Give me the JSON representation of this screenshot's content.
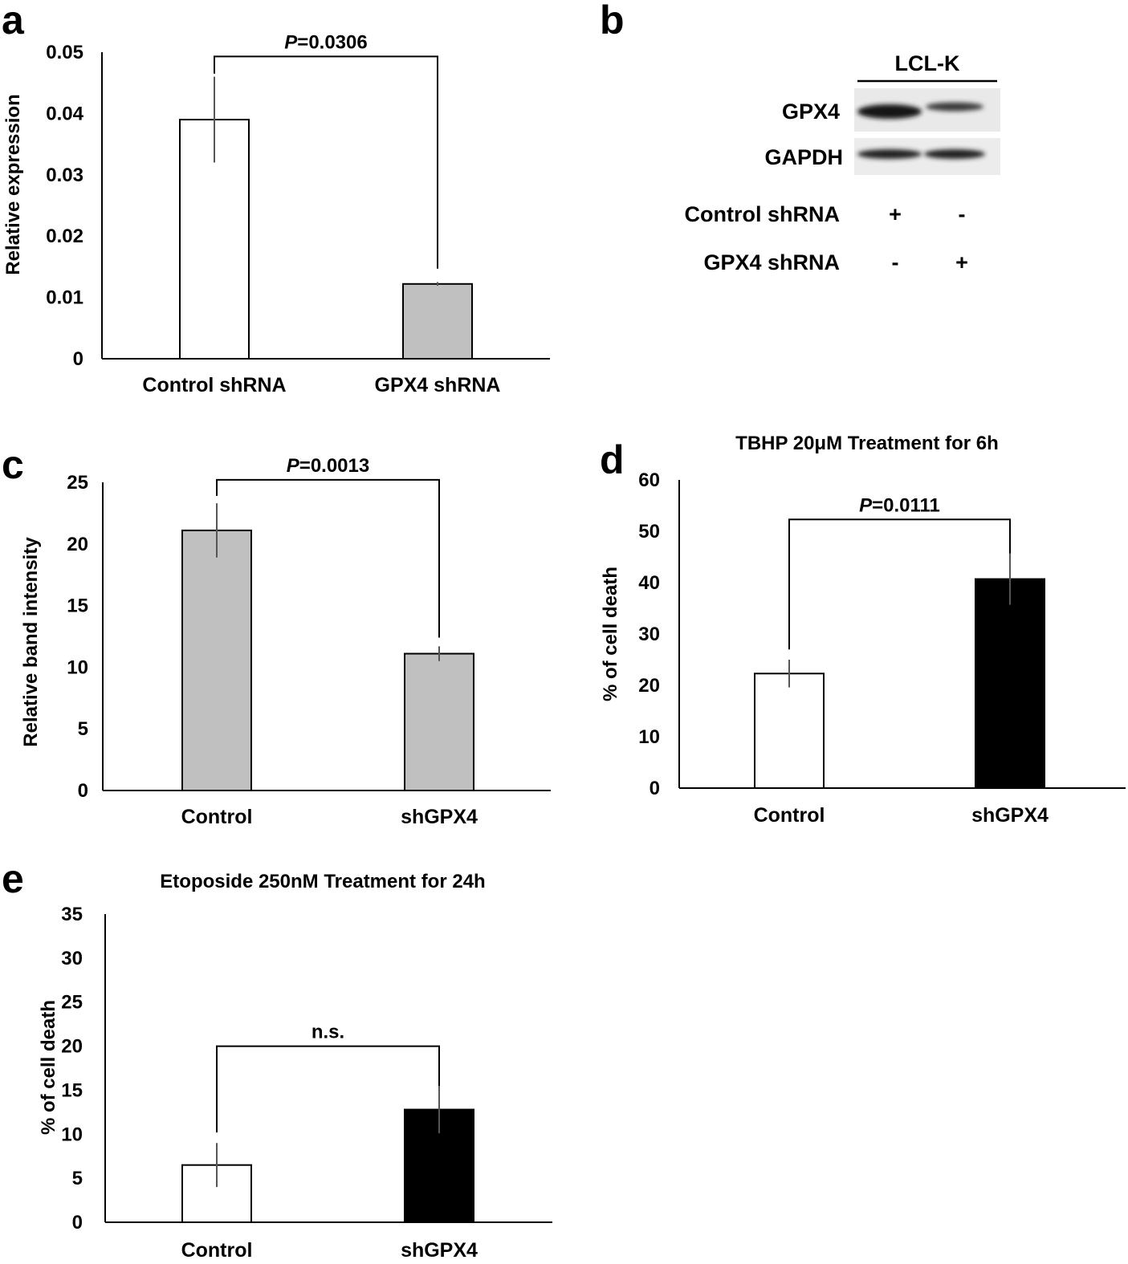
{
  "panels": {
    "a": "a",
    "b": "b",
    "c": "c",
    "d": "d",
    "e": "e"
  },
  "chart_data": [
    {
      "id": "a",
      "type": "bar",
      "title": "",
      "xlabel": "",
      "ylabel": "Relative expression",
      "categories": [
        "Control shRNA",
        "GPX4 shRNA"
      ],
      "values": [
        0.039,
        0.0122
      ],
      "errors": [
        0.007,
        0.0003
      ],
      "bar_colors": [
        "#ffffff",
        "#c0c0c0"
      ],
      "ylim": [
        0,
        0.05
      ],
      "yticks": [
        0,
        0.01,
        0.02,
        0.03,
        0.04,
        0.05
      ],
      "ytick_labels": [
        "0",
        "0.01",
        "0.02",
        "0.03",
        "0.04",
        "0.05"
      ],
      "significance": {
        "p_label": "P",
        "p_value": "=0.0306"
      }
    },
    {
      "id": "c",
      "type": "bar",
      "title": "",
      "xlabel": "",
      "ylabel": "Relative band intensity",
      "categories": [
        "Control",
        "shGPX4"
      ],
      "values": [
        21.1,
        11.1
      ],
      "errors": [
        2.2,
        0.6
      ],
      "bar_colors": [
        "#c0c0c0",
        "#c0c0c0"
      ],
      "ylim": [
        0,
        25
      ],
      "yticks": [
        0,
        5,
        10,
        15,
        20,
        25
      ],
      "ytick_labels": [
        "0",
        "5",
        "10",
        "15",
        "20",
        "25"
      ],
      "significance": {
        "p_label": "P",
        "p_value": "=0.0013"
      }
    },
    {
      "id": "d",
      "type": "bar",
      "title": "TBHP 20μM Treatment for 6h",
      "xlabel": "",
      "ylabel": "% of cell death",
      "categories": [
        "Control",
        "shGPX4"
      ],
      "values": [
        22.3,
        40.7
      ],
      "errors": [
        2.7,
        5.0
      ],
      "bar_colors": [
        "#ffffff",
        "#000000"
      ],
      "ylim": [
        0,
        60
      ],
      "yticks": [
        0,
        10,
        20,
        30,
        40,
        50,
        60
      ],
      "ytick_labels": [
        "0",
        "10",
        "20",
        "30",
        "40",
        "50",
        "60"
      ],
      "significance": {
        "p_label": "P",
        "p_value": "=0.0111"
      }
    },
    {
      "id": "e",
      "type": "bar",
      "title": "Etoposide 250nM Treatment for 24h",
      "xlabel": "",
      "ylabel": "% of cell death",
      "categories": [
        "Control",
        "shGPX4"
      ],
      "values": [
        6.5,
        12.8
      ],
      "errors": [
        2.5,
        2.7
      ],
      "bar_colors": [
        "#ffffff",
        "#000000"
      ],
      "ylim": [
        0,
        35
      ],
      "yticks": [
        0,
        5,
        10,
        15,
        20,
        25,
        30,
        35
      ],
      "ytick_labels": [
        "0",
        "5",
        "10",
        "15",
        "20",
        "25",
        "30",
        "35"
      ],
      "significance": {
        "p_label": "",
        "p_value": "n.s."
      }
    }
  ],
  "blot": {
    "cell_line": "LCL-K",
    "bands": [
      "GPX4",
      "GAPDH"
    ],
    "conditions": [
      {
        "label": "Control shRNA",
        "lanes": [
          "+",
          "-"
        ]
      },
      {
        "label": "GPX4 shRNA",
        "lanes": [
          "-",
          "+"
        ]
      }
    ]
  }
}
